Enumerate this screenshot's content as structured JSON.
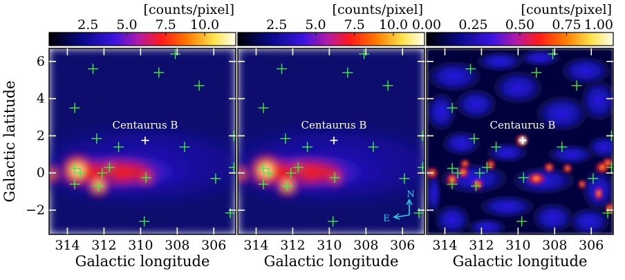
{
  "chart_data": {
    "type": "heatmap",
    "panels": [
      {
        "id": "counts",
        "colorbar": {
          "label": "[counts/pixel]",
          "ticks": [
            "2.5",
            "5.0",
            "7.5",
            "10.0"
          ],
          "range": [
            0,
            12
          ]
        },
        "show_source_label": true,
        "show_compass": false
      },
      {
        "id": "model",
        "colorbar": {
          "label": "[counts/pixel]",
          "ticks": [
            "2.5",
            "5.0",
            "7.5",
            "10.0"
          ],
          "range": [
            0,
            12
          ]
        },
        "show_source_label": true,
        "show_compass": true
      },
      {
        "id": "residual",
        "colorbar": {
          "label": "[counts/pixel]",
          "ticks": [
            "0.00",
            "0.25",
            "0.50",
            "0.75",
            "1.00"
          ],
          "range": [
            0,
            1
          ]
        },
        "show_source_label": true,
        "show_compass": false
      }
    ],
    "xlabel": "Galactic longitude",
    "ylabel": "Galactic latitude",
    "xlim": [
      315,
      304.8
    ],
    "ylim": [
      -3.3,
      6.7
    ],
    "x_ticks": [
      "314",
      "312",
      "310",
      "308",
      "306"
    ],
    "x_tick_values": [
      314,
      312,
      310,
      308,
      306
    ],
    "y_ticks": [
      "6",
      "4",
      "2",
      "0",
      "−2"
    ],
    "y_tick_values": [
      6,
      4,
      2,
      0,
      -2
    ],
    "source": {
      "name": "Centaurus B",
      "l": 309.75,
      "b": 1.75
    },
    "point_sources": [
      {
        "l": 312.6,
        "b": 5.6
      },
      {
        "l": 308.1,
        "b": 6.4
      },
      {
        "l": 309.0,
        "b": 5.4
      },
      {
        "l": 306.8,
        "b": 4.7
      },
      {
        "l": 313.6,
        "b": 3.5
      },
      {
        "l": 312.4,
        "b": 1.85
      },
      {
        "l": 311.2,
        "b": 1.4
      },
      {
        "l": 307.6,
        "b": 1.4
      },
      {
        "l": 313.6,
        "b": 0.25
      },
      {
        "l": 313.3,
        "b": 0.0
      },
      {
        "l": 312.1,
        "b": 0.0
      },
      {
        "l": 311.7,
        "b": 0.3
      },
      {
        "l": 312.3,
        "b": -0.7
      },
      {
        "l": 313.6,
        "b": -0.6
      },
      {
        "l": 309.7,
        "b": -0.25
      },
      {
        "l": 305.9,
        "b": -0.3
      },
      {
        "l": 304.9,
        "b": 0.3
      },
      {
        "l": 304.9,
        "b": 2.0
      },
      {
        "l": 305.1,
        "b": -2.15
      },
      {
        "l": 309.8,
        "b": -2.6
      }
    ],
    "compass": {
      "north": "N",
      "east": "E"
    }
  }
}
